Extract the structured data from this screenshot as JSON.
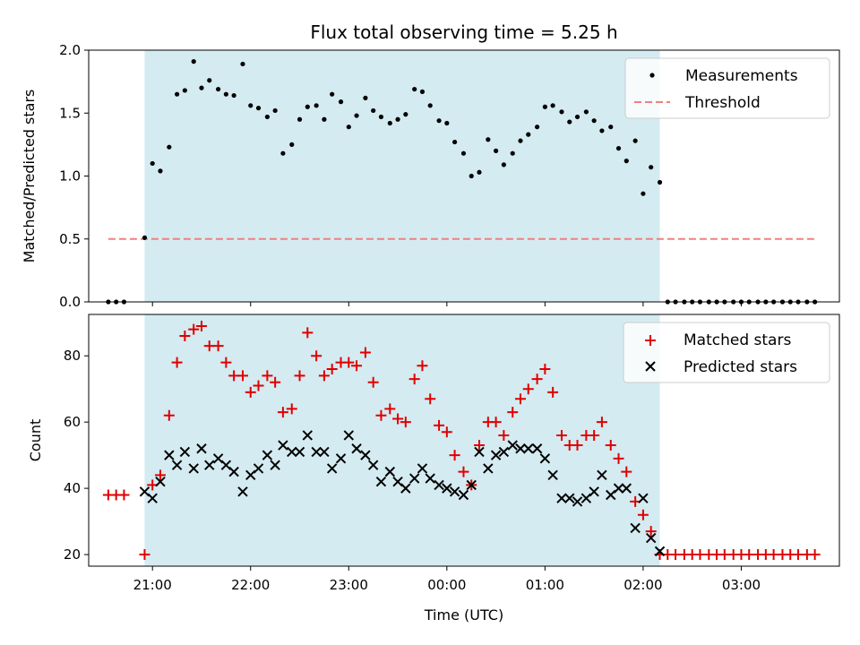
{
  "chart_data": {
    "type": "scatter",
    "title": "Flux total observing time = 5.25 h",
    "xlabel": "Time (UTC)",
    "x_tick_labels": [
      "21:00",
      "22:00",
      "23:00",
      "00:00",
      "01:00",
      "02:00",
      "03:00"
    ],
    "x_tick_hours": [
      21,
      22,
      23,
      24,
      25,
      26,
      27
    ],
    "xlim_hours": [
      20.35,
      28.0
    ],
    "observing_window_hours": [
      20.92,
      26.17
    ],
    "colors": {
      "window": "#d4ebf1",
      "threshold": "#f08080",
      "matched": "#e00000",
      "predicted": "#000000",
      "measurement": "#000000"
    },
    "top": {
      "ylabel": "Matched/Predicted stars",
      "ylim": [
        0.0,
        2.0
      ],
      "yticks": [
        "0.0",
        "0.5",
        "1.0",
        "1.5",
        "2.0"
      ],
      "ytick_values": [
        0.0,
        0.5,
        1.0,
        1.5,
        2.0
      ],
      "legend": [
        "Measurements",
        "Threshold"
      ],
      "legend_position": "upper right",
      "threshold": {
        "value": 0.5,
        "x_range_hours": [
          20.55,
          27.75
        ]
      },
      "measurements": {
        "x": [
          20.55,
          20.63,
          20.71,
          20.92,
          21.0,
          21.08,
          21.17,
          21.25,
          21.33,
          21.42,
          21.5,
          21.58,
          21.67,
          21.75,
          21.83,
          21.92,
          22.0,
          22.08,
          22.17,
          22.25,
          22.33,
          22.42,
          22.5,
          22.58,
          22.67,
          22.75,
          22.83,
          22.92,
          23.0,
          23.08,
          23.17,
          23.25,
          23.33,
          23.42,
          23.5,
          23.58,
          23.67,
          23.75,
          23.83,
          23.92,
          24.0,
          24.08,
          24.17,
          24.25,
          24.33,
          24.42,
          24.5,
          24.58,
          24.67,
          24.75,
          24.83,
          24.92,
          25.0,
          25.08,
          25.17,
          25.25,
          25.33,
          25.42,
          25.5,
          25.58,
          25.67,
          25.75,
          25.83,
          25.92,
          26.0,
          26.08,
          26.17,
          26.25,
          26.33,
          26.42,
          26.5,
          26.58,
          26.67,
          26.75,
          26.83,
          26.92,
          27.0,
          27.08,
          27.17,
          27.25,
          27.33,
          27.42,
          27.5,
          27.58,
          27.67,
          27.75
        ],
        "y": [
          0.0,
          0.0,
          0.0,
          0.51,
          1.1,
          1.04,
          1.23,
          1.65,
          1.68,
          1.91,
          1.7,
          1.76,
          1.69,
          1.65,
          1.64,
          1.89,
          1.56,
          1.54,
          1.47,
          1.52,
          1.18,
          1.25,
          1.45,
          1.55,
          1.56,
          1.45,
          1.65,
          1.59,
          1.39,
          1.48,
          1.62,
          1.52,
          1.47,
          1.42,
          1.45,
          1.49,
          1.69,
          1.67,
          1.56,
          1.44,
          1.42,
          1.27,
          1.18,
          1.0,
          1.03,
          1.29,
          1.2,
          1.09,
          1.18,
          1.28,
          1.33,
          1.39,
          1.55,
          1.56,
          1.51,
          1.43,
          1.47,
          1.51,
          1.44,
          1.36,
          1.39,
          1.22,
          1.12,
          1.28,
          0.86,
          1.07,
          0.95,
          0.0,
          0.0,
          0.0,
          0.0,
          0.0,
          0.0,
          0.0,
          0.0,
          0.0,
          0.0,
          0.0,
          0.0,
          0.0,
          0.0,
          0.0,
          0.0,
          0.0,
          0.0,
          0.0
        ]
      }
    },
    "bottom": {
      "ylabel": "Count",
      "ylim": [
        16.5,
        92.5
      ],
      "yticks": [
        "20",
        "40",
        "60",
        "80"
      ],
      "ytick_values": [
        20,
        40,
        60,
        80
      ],
      "legend": [
        "Matched stars",
        "Predicted stars"
      ],
      "legend_position": "upper right",
      "matched": {
        "x": [
          20.55,
          20.63,
          20.71,
          20.92,
          21.0,
          21.08,
          21.17,
          21.25,
          21.33,
          21.42,
          21.5,
          21.58,
          21.67,
          21.75,
          21.83,
          21.92,
          22.0,
          22.08,
          22.17,
          22.25,
          22.33,
          22.42,
          22.5,
          22.58,
          22.67,
          22.75,
          22.83,
          22.92,
          23.0,
          23.08,
          23.17,
          23.25,
          23.33,
          23.42,
          23.5,
          23.58,
          23.67,
          23.75,
          23.83,
          23.92,
          24.0,
          24.08,
          24.17,
          24.25,
          24.33,
          24.42,
          24.5,
          24.58,
          24.67,
          24.75,
          24.83,
          24.92,
          25.0,
          25.08,
          25.17,
          25.25,
          25.33,
          25.42,
          25.5,
          25.58,
          25.67,
          25.75,
          25.83,
          25.92,
          26.0,
          26.08,
          26.17,
          26.25,
          26.33,
          26.42,
          26.5,
          26.58,
          26.67,
          26.75,
          26.83,
          26.92,
          27.0,
          27.08,
          27.17,
          27.25,
          27.33,
          27.42,
          27.5,
          27.58,
          27.67,
          27.75
        ],
        "y": [
          38,
          38,
          38,
          20,
          41,
          44,
          62,
          78,
          86,
          88,
          89,
          83,
          83,
          78,
          74,
          74,
          69,
          71,
          74,
          72,
          63,
          64,
          74,
          87,
          80,
          74,
          76,
          78,
          78,
          77,
          81,
          72,
          62,
          64,
          61,
          60,
          73,
          77,
          67,
          59,
          57,
          50,
          45,
          41,
          53,
          60,
          60,
          56,
          63,
          67,
          70,
          73,
          76,
          69,
          56,
          53,
          53,
          56,
          56,
          60,
          53,
          49,
          45,
          36,
          32,
          27,
          20,
          20,
          20,
          20,
          20,
          20,
          20,
          20,
          20,
          20,
          20,
          20,
          20,
          20,
          20,
          20,
          20,
          20,
          20,
          20
        ]
      },
      "predicted": {
        "x": [
          20.92,
          21.0,
          21.08,
          21.17,
          21.25,
          21.33,
          21.42,
          21.5,
          21.58,
          21.67,
          21.75,
          21.83,
          21.92,
          22.0,
          22.08,
          22.17,
          22.25,
          22.33,
          22.42,
          22.5,
          22.58,
          22.67,
          22.75,
          22.83,
          22.92,
          23.0,
          23.08,
          23.17,
          23.25,
          23.33,
          23.42,
          23.5,
          23.58,
          23.67,
          23.75,
          23.83,
          23.92,
          24.0,
          24.08,
          24.17,
          24.25,
          24.33,
          24.42,
          24.5,
          24.58,
          24.67,
          24.75,
          24.83,
          24.92,
          25.0,
          25.08,
          25.17,
          25.25,
          25.33,
          25.42,
          25.5,
          25.58,
          25.67,
          25.75,
          25.83,
          25.92,
          26.0,
          26.08,
          26.17
        ],
        "y": [
          39,
          37,
          42,
          50,
          47,
          51,
          46,
          52,
          47,
          49,
          47,
          45,
          39,
          44,
          46,
          50,
          47,
          53,
          51,
          51,
          56,
          51,
          51,
          46,
          49,
          56,
          52,
          50,
          47,
          42,
          45,
          42,
          40,
          43,
          46,
          43,
          41,
          40,
          39,
          38,
          41,
          51,
          46,
          50,
          51,
          53,
          52,
          52,
          52,
          49,
          44,
          37,
          37,
          36,
          37,
          39,
          44,
          38,
          40,
          40,
          28,
          37,
          25,
          21
        ]
      }
    }
  }
}
